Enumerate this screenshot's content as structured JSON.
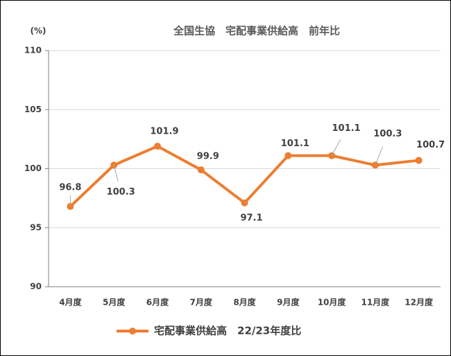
{
  "chart_data": {
    "type": "line",
    "title": "全国生協　宅配事業供給高　前年比",
    "y_unit": "(%)",
    "categories": [
      "4月度",
      "5月度",
      "6月度",
      "7月度",
      "8月度",
      "9月度",
      "10月度",
      "11月度",
      "12月度"
    ],
    "series": [
      {
        "name": "宅配事業供給高　22/23年度比",
        "color": "#ed7d31",
        "values": [
          96.8,
          100.3,
          101.9,
          99.9,
          97.1,
          101.1,
          101.1,
          100.3,
          100.7
        ]
      }
    ],
    "ylim": [
      90,
      110
    ],
    "yticks": [
      90,
      95,
      100,
      105,
      110
    ],
    "grid": true,
    "data_labels": true,
    "legend": "bottom"
  }
}
